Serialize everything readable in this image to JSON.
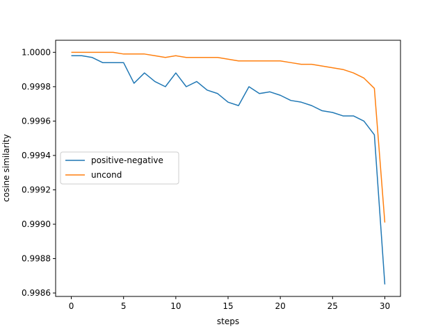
{
  "chart_data": {
    "type": "line",
    "title": "",
    "xlabel": "steps",
    "ylabel": "cosine similarity",
    "xlim": [
      -1.5,
      31.5
    ],
    "ylim": [
      0.99858,
      1.00007
    ],
    "xticks": [
      0,
      5,
      10,
      15,
      20,
      25,
      30
    ],
    "yticks": [
      0.9986,
      0.9988,
      0.999,
      0.9992,
      0.9994,
      0.9996,
      0.9998,
      1.0
    ],
    "ytick_labels": [
      "0.9986",
      "0.9988",
      "0.9990",
      "0.9992",
      "0.9994",
      "0.9996",
      "0.9998",
      "1.0000"
    ],
    "grid": false,
    "legend_position": "center-left",
    "x": [
      0,
      1,
      2,
      3,
      4,
      5,
      6,
      7,
      8,
      9,
      10,
      11,
      12,
      13,
      14,
      15,
      16,
      17,
      18,
      19,
      20,
      21,
      22,
      23,
      24,
      25,
      26,
      27,
      28,
      29,
      30
    ],
    "series": [
      {
        "name": "positive-negative",
        "color": "#1f77b4",
        "values": [
          0.99998,
          0.99998,
          0.99997,
          0.99994,
          0.99994,
          0.99994,
          0.99982,
          0.99988,
          0.99983,
          0.9998,
          0.99988,
          0.9998,
          0.99983,
          0.99978,
          0.99976,
          0.99971,
          0.99969,
          0.9998,
          0.99976,
          0.99977,
          0.99975,
          0.99972,
          0.99971,
          0.99969,
          0.99966,
          0.99965,
          0.99963,
          0.99963,
          0.9996,
          0.99952,
          0.99865
        ]
      },
      {
        "name": "uncond",
        "color": "#ff7f0e",
        "values": [
          1.0,
          1.0,
          1.0,
          1.0,
          1.0,
          0.99999,
          0.99999,
          0.99999,
          0.99998,
          0.99997,
          0.99998,
          0.99997,
          0.99997,
          0.99997,
          0.99997,
          0.99996,
          0.99995,
          0.99995,
          0.99995,
          0.99995,
          0.99995,
          0.99994,
          0.99993,
          0.99993,
          0.99992,
          0.99991,
          0.9999,
          0.99988,
          0.99985,
          0.99979,
          0.99901
        ]
      }
    ]
  }
}
